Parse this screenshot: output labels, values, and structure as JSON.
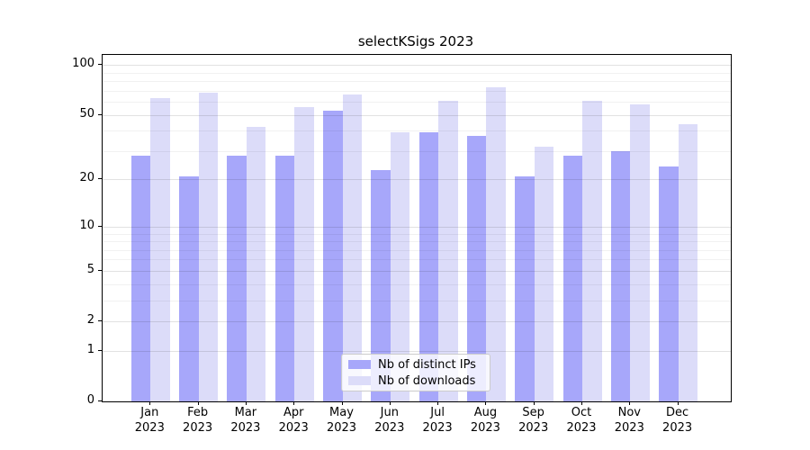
{
  "chart_data": {
    "type": "bar",
    "title": "selectKSigs 2023",
    "xlabel": "",
    "ylabel": "",
    "yscale": "log1p",
    "ylim": [
      0,
      115
    ],
    "grid": "on",
    "legend_position": "lower center",
    "months": [
      "Jan",
      "Feb",
      "Mar",
      "Apr",
      "May",
      "Jun",
      "Jul",
      "Aug",
      "Sep",
      "Oct",
      "Nov",
      "Dec"
    ],
    "year": "2023",
    "y_ticks_major": [
      100,
      50,
      20,
      10,
      5,
      2,
      1,
      0
    ],
    "y_gridlines_minor": [
      3,
      4,
      6,
      7,
      8,
      9,
      30,
      40,
      60,
      70,
      80,
      90
    ],
    "series": [
      {
        "name": "Nb of distinct IPs",
        "color": "#a7a7fa",
        "values": [
          28,
          21,
          28,
          28,
          53,
          23,
          39,
          37,
          21,
          28,
          30,
          24
        ]
      },
      {
        "name": "Nb of downloads",
        "color": "#dcdcf9",
        "values": [
          63,
          68,
          42,
          56,
          66,
          39,
          61,
          73,
          32,
          61,
          58,
          44
        ]
      }
    ]
  },
  "colors": {
    "spine": "#000000",
    "background": "#ffffff",
    "legend_border": "#cccccc"
  }
}
